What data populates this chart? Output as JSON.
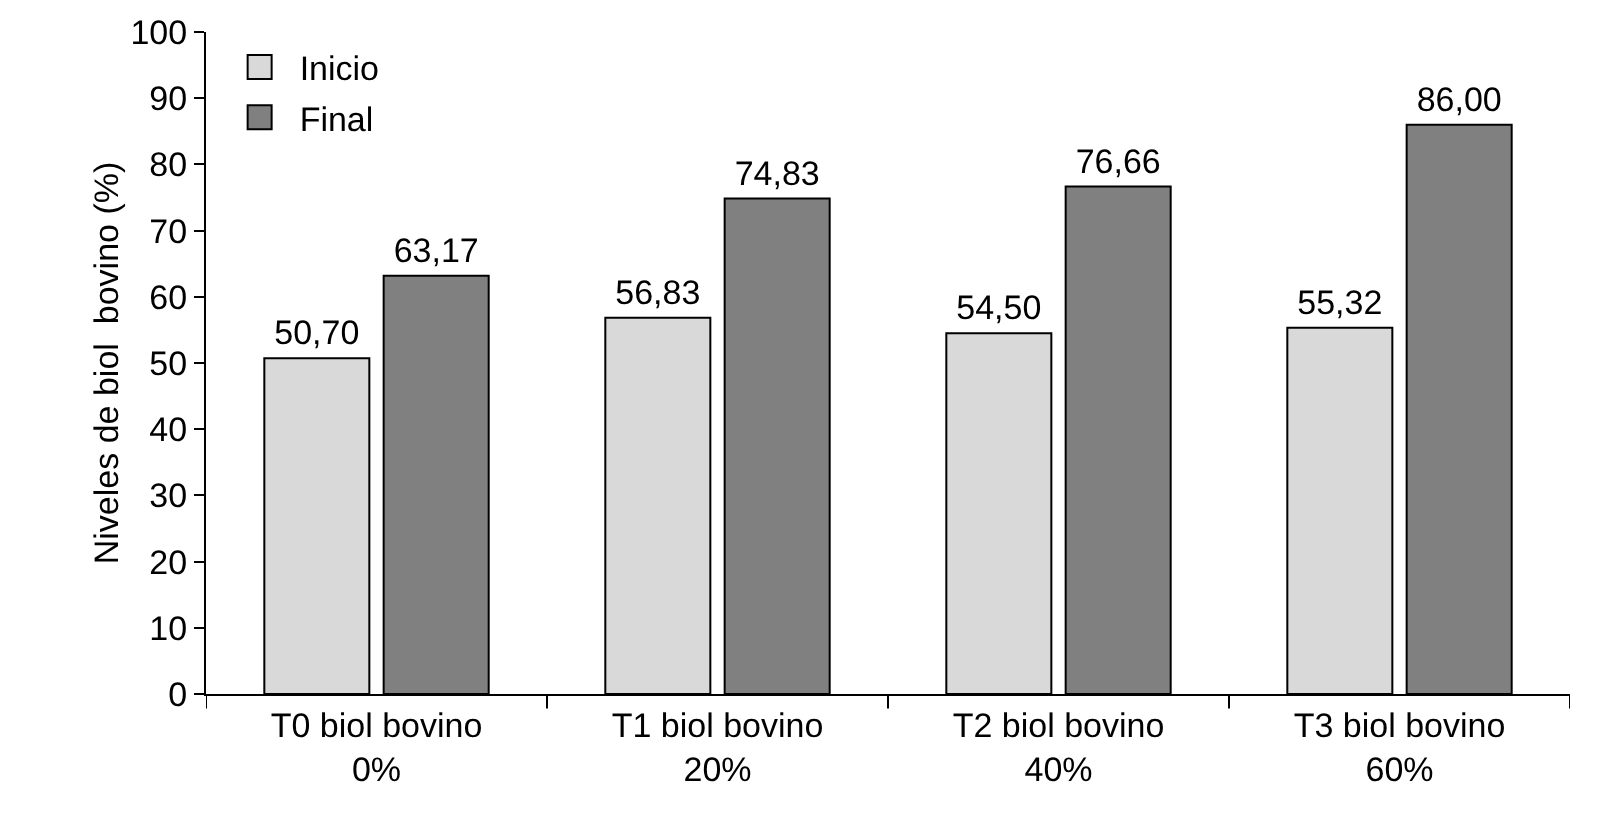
{
  "chart_data": {
    "type": "bar",
    "ylabel": "Niveles de biol  bovino (%)",
    "categories": [
      "T0 biol bovino\n0%",
      "T1 biol bovino\n20%",
      "T2 biol bovino\n40%",
      "T3 biol bovino\n60%"
    ],
    "series": [
      {
        "name": "Inicio",
        "color": "#d9d9d9",
        "values": [
          50.7,
          56.83,
          54.5,
          55.32
        ],
        "value_labels": [
          "50,70",
          "56,83",
          "54,50",
          "55,32"
        ]
      },
      {
        "name": "Final",
        "color": "#808080",
        "values": [
          63.17,
          74.83,
          76.66,
          86.0
        ],
        "value_labels": [
          "63,17",
          "74,83",
          "76,66",
          "86,00"
        ]
      }
    ],
    "ylim": [
      0,
      100
    ],
    "yticks": [
      0,
      10,
      20,
      30,
      40,
      50,
      60,
      70,
      80,
      90,
      100
    ],
    "grid": false,
    "legend": "top left"
  }
}
